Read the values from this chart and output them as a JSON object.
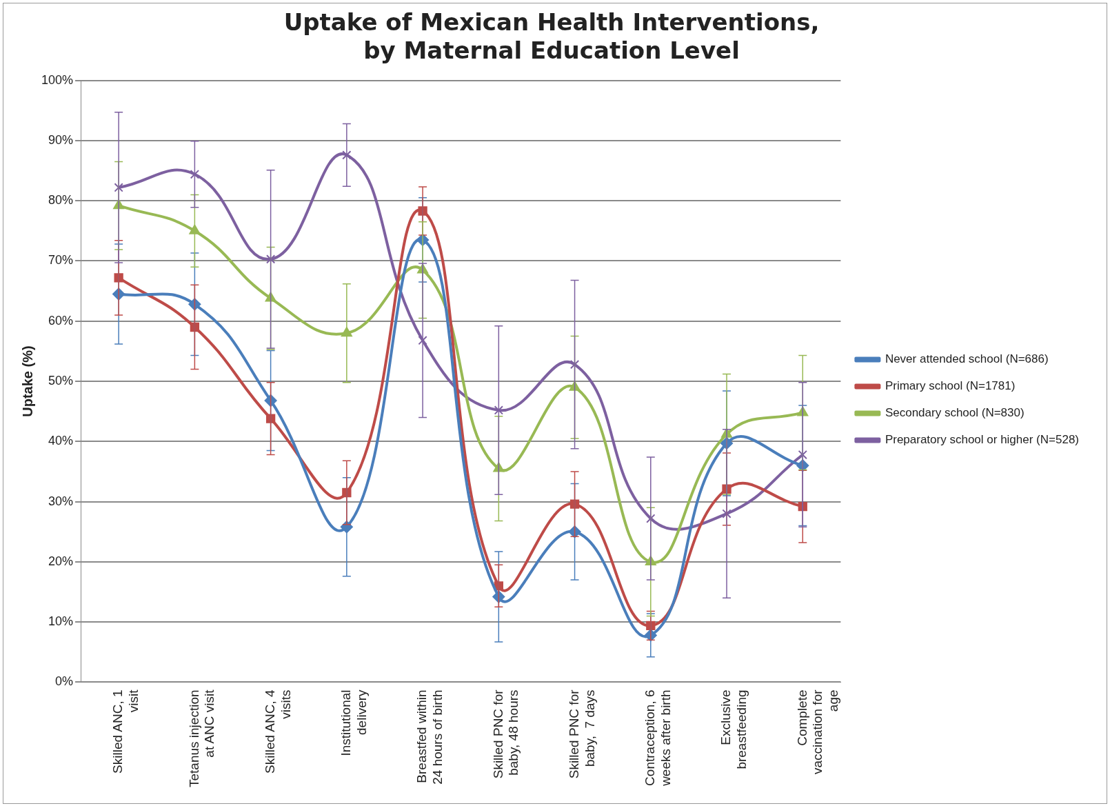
{
  "chart_data": {
    "type": "line",
    "title": "Uptake of Mexican Health Interventions, by Maternal Education Level",
    "ylabel": "Uptake (%)",
    "categories": [
      "Skilled ANC, 1 visit",
      "Tetanus injection at ANC visit",
      "Skilled ANC, 4 visits",
      "Institutional delivery",
      "Breastfed within 24 hours of birth",
      "Skilled PNC for baby, 48 hours",
      "Skilled PNC for baby,  7 days",
      "Contraception, 6 weeks after birth",
      "Exclusive breastfeeding",
      "Complete vaccination for age"
    ],
    "ylim": [
      0,
      100
    ],
    "yticks": [
      {
        "value": 0,
        "label": "0%"
      },
      {
        "value": 10,
        "label": "10%"
      },
      {
        "value": 20,
        "label": "20%"
      },
      {
        "value": 30,
        "label": "30%"
      },
      {
        "value": 40,
        "label": "40%"
      },
      {
        "value": 50,
        "label": "50%"
      },
      {
        "value": 60,
        "label": "60%"
      },
      {
        "value": 70,
        "label": "70%"
      },
      {
        "value": 80,
        "label": "80%"
      },
      {
        "value": 90,
        "label": "90%"
      },
      {
        "value": 100,
        "label": "100%"
      }
    ],
    "grid": "y",
    "legend": "right",
    "line_style": "solid",
    "series": [
      {
        "name": "Never attended school (N=686)",
        "color": "#4a7ebb",
        "marker": "diamond",
        "values": [
          64.5,
          62.8,
          46.8,
          25.8,
          73.5,
          14.2,
          25,
          7.8,
          39.7,
          36
        ],
        "errors": [
          8.3,
          8.5,
          8.3,
          8.2,
          7,
          7.5,
          8,
          3.6,
          8.7,
          10
        ]
      },
      {
        "name": "Primary school (N=1781)",
        "color": "#be4b48",
        "marker": "square",
        "values": [
          67.2,
          59,
          43.8,
          31.5,
          78.3,
          16,
          29.6,
          9.4,
          32.1,
          29.2
        ],
        "errors": [
          6.2,
          7,
          6,
          5.3,
          4,
          3.5,
          5.4,
          2.4,
          6,
          6
        ]
      },
      {
        "name": "Secondary school (N=830)",
        "color": "#98b954",
        "marker": "triangle",
        "values": [
          79.2,
          75,
          63.8,
          58,
          68.5,
          35.5,
          49,
          20,
          41.2,
          44.8
        ],
        "errors": [
          7.3,
          6,
          8.5,
          8.2,
          8,
          8.7,
          8.5,
          9,
          10,
          9.5
        ]
      },
      {
        "name": "Preparatory school or higher (N=528)",
        "color": "#7d60a0",
        "marker": "cross",
        "values": [
          82.2,
          84.4,
          70.3,
          87.6,
          56.8,
          45.2,
          52.8,
          27.2,
          28,
          37.8
        ],
        "errors": [
          12.5,
          5.5,
          14.8,
          5.2,
          12.8,
          14,
          14,
          10.2,
          14,
          12
        ]
      }
    ]
  }
}
